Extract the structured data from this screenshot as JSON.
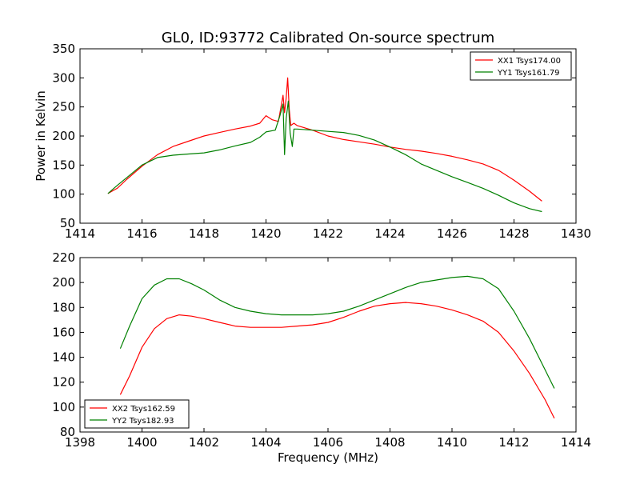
{
  "title": "GL0, ID:93772 Calibrated On-source spectrum",
  "colors": {
    "xx": "#ff0000",
    "yy": "#008000",
    "axis": "#000000"
  },
  "chart_data": [
    {
      "type": "line",
      "ylabel": "Power in Kelvin",
      "xlabel": "",
      "xlim": [
        1414,
        1430
      ],
      "ylim": [
        50,
        350
      ],
      "xticks": [
        1414,
        1416,
        1418,
        1420,
        1422,
        1424,
        1426,
        1428,
        1430
      ],
      "yticks": [
        50,
        100,
        150,
        200,
        250,
        300,
        350
      ],
      "legend_position": "top-right",
      "series": [
        {
          "name": "XX1 Tsys174.00",
          "color": "#ff0000",
          "x": [
            1414.9,
            1415.2,
            1415.5,
            1416.0,
            1416.5,
            1417.0,
            1417.5,
            1418.0,
            1418.5,
            1419.0,
            1419.5,
            1419.8,
            1420.0,
            1420.2,
            1420.4,
            1420.55,
            1420.6,
            1420.65,
            1420.7,
            1420.75,
            1420.8,
            1420.9,
            1421.0,
            1421.5,
            1422.0,
            1422.5,
            1423.0,
            1423.5,
            1424.0,
            1424.5,
            1425.0,
            1425.5,
            1426.0,
            1426.5,
            1427.0,
            1427.5,
            1428.0,
            1428.5,
            1428.9
          ],
          "values": [
            101,
            110,
            125,
            148,
            168,
            182,
            191,
            200,
            206,
            212,
            217,
            222,
            235,
            228,
            225,
            270,
            240,
            265,
            300,
            245,
            218,
            222,
            218,
            210,
            200,
            194,
            190,
            186,
            181,
            177,
            174,
            170,
            165,
            159,
            152,
            141,
            124,
            105,
            88
          ]
        },
        {
          "name": "YY1 Tsys161.79",
          "color": "#008000",
          "x": [
            1414.9,
            1415.2,
            1415.5,
            1416.0,
            1416.5,
            1417.0,
            1417.5,
            1418.0,
            1418.5,
            1419.0,
            1419.5,
            1419.8,
            1420.0,
            1420.3,
            1420.45,
            1420.55,
            1420.6,
            1420.65,
            1420.72,
            1420.78,
            1420.85,
            1420.9,
            1421.0,
            1421.5,
            1422.0,
            1422.5,
            1423.0,
            1423.5,
            1424.0,
            1424.5,
            1425.0,
            1425.5,
            1426.0,
            1426.5,
            1427.0,
            1427.5,
            1428.0,
            1428.5,
            1428.9
          ],
          "values": [
            101,
            115,
            128,
            150,
            163,
            167,
            169,
            171,
            176,
            183,
            189,
            198,
            207,
            210,
            235,
            255,
            168,
            230,
            260,
            205,
            182,
            212,
            212,
            210,
            208,
            206,
            201,
            193,
            181,
            168,
            152,
            141,
            130,
            120,
            110,
            98,
            85,
            75,
            70
          ]
        }
      ]
    },
    {
      "type": "line",
      "xlabel": "Frequency (MHz)",
      "ylabel": "",
      "xlim": [
        1398,
        1414
      ],
      "ylim": [
        80,
        220
      ],
      "xticks": [
        1398,
        1400,
        1402,
        1404,
        1406,
        1408,
        1410,
        1412,
        1414
      ],
      "yticks": [
        80,
        100,
        120,
        140,
        160,
        180,
        200,
        220
      ],
      "legend_position": "bottom-left",
      "series": [
        {
          "name": "XX2 Tsys162.59",
          "color": "#ff0000",
          "x": [
            1399.3,
            1399.6,
            1400.0,
            1400.4,
            1400.8,
            1401.2,
            1401.6,
            1402.0,
            1402.5,
            1403.0,
            1403.5,
            1404.0,
            1404.5,
            1405.0,
            1405.5,
            1406.0,
            1406.5,
            1407.0,
            1407.5,
            1408.0,
            1408.5,
            1409.0,
            1409.5,
            1410.0,
            1410.5,
            1411.0,
            1411.5,
            1412.0,
            1412.5,
            1413.0,
            1413.3
          ],
          "values": [
            110,
            125,
            148,
            163,
            171,
            174,
            173,
            171,
            168,
            165,
            164,
            164,
            164,
            165,
            166,
            168,
            172,
            177,
            181,
            183,
            184,
            183,
            181,
            178,
            174,
            169,
            160,
            145,
            127,
            106,
            91
          ]
        },
        {
          "name": "YY2 Tsys182.93",
          "color": "#008000",
          "x": [
            1399.3,
            1399.6,
            1400.0,
            1400.4,
            1400.8,
            1401.2,
            1401.6,
            1402.0,
            1402.5,
            1403.0,
            1403.5,
            1404.0,
            1404.5,
            1405.0,
            1405.5,
            1406.0,
            1406.5,
            1407.0,
            1407.5,
            1408.0,
            1408.5,
            1409.0,
            1409.5,
            1410.0,
            1410.5,
            1411.0,
            1411.5,
            1412.0,
            1412.5,
            1413.0,
            1413.3
          ],
          "values": [
            147,
            165,
            187,
            198,
            203,
            203,
            199,
            194,
            186,
            180,
            177,
            175,
            174,
            174,
            174,
            175,
            177,
            181,
            186,
            191,
            196,
            200,
            202,
            204,
            205,
            203,
            195,
            177,
            155,
            130,
            115
          ]
        }
      ]
    }
  ]
}
